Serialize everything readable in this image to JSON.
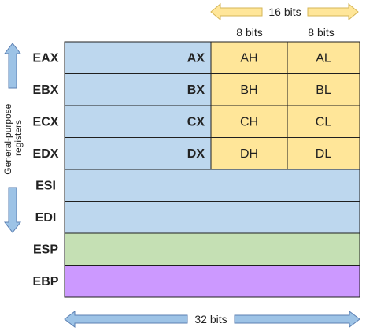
{
  "colors": {
    "blue_fill": "#bdd7ee",
    "yellow_fill": "#ffe699",
    "green_fill": "#c5e0b4",
    "purple_fill": "#cc99ff",
    "arrow_fill": "#9dc3e6",
    "arrow_stroke": "#5b7fb2",
    "yellow_arrow_fill": "#ffe699",
    "yellow_arrow_stroke": "#d6b656",
    "border": "#1f1f1f",
    "text": "#222222"
  },
  "top_labels": {
    "width_16": "16 bits",
    "width_8_high": "8 bits",
    "width_8_low": "8 bits"
  },
  "bottom_label": "32 bits",
  "side_label": "General-purpose registers",
  "registers": [
    {
      "name": "EAX",
      "sub16": "AX",
      "high": "AH",
      "low": "AL",
      "kind": "general"
    },
    {
      "name": "EBX",
      "sub16": "BX",
      "high": "BH",
      "low": "BL",
      "kind": "general"
    },
    {
      "name": "ECX",
      "sub16": "CX",
      "high": "CH",
      "low": "CL",
      "kind": "general"
    },
    {
      "name": "EDX",
      "sub16": "DX",
      "high": "DH",
      "low": "DL",
      "kind": "general"
    },
    {
      "name": "ESI",
      "kind": "index"
    },
    {
      "name": "EDI",
      "kind": "index"
    },
    {
      "name": "ESP",
      "kind": "stack"
    },
    {
      "name": "EBP",
      "kind": "base"
    }
  ]
}
